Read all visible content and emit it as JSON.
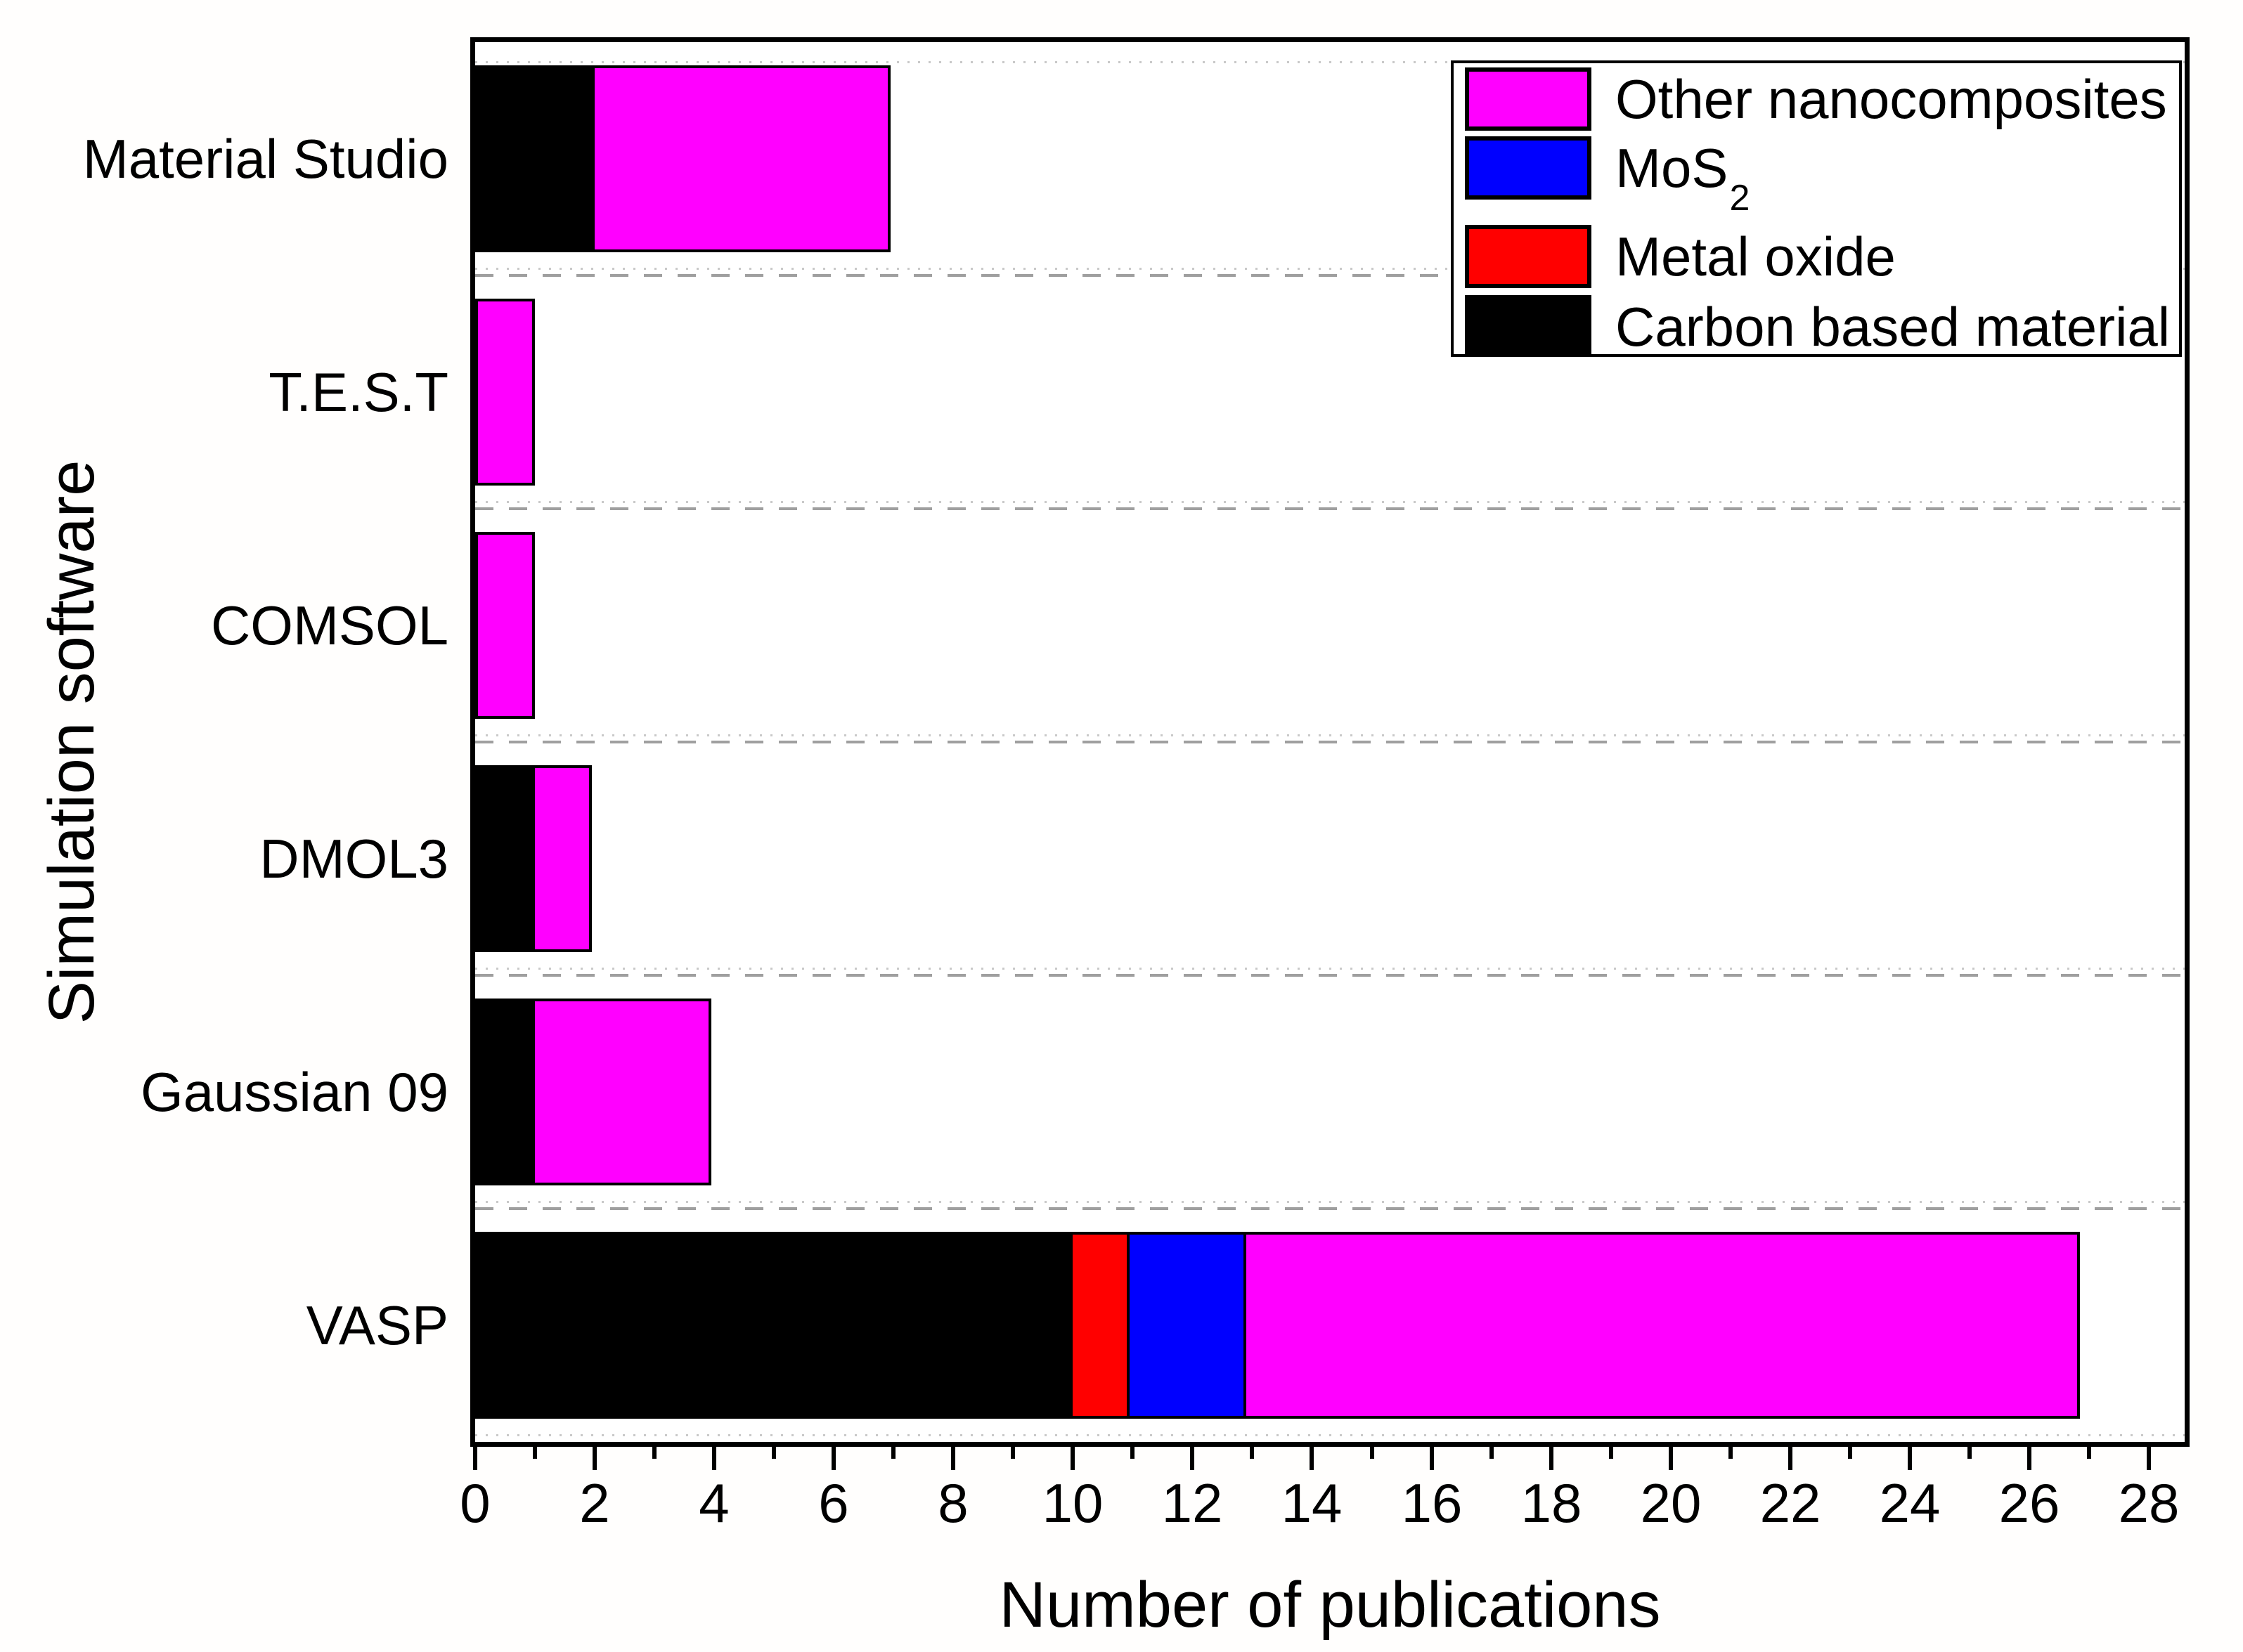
{
  "chart_data": {
    "type": "bar",
    "orientation": "horizontal",
    "stacked": true,
    "title": "",
    "xlabel": "Number of publications",
    "ylabel": "Simulation software",
    "xlim": [
      0,
      28.6
    ],
    "x_major_ticks": [
      0,
      2,
      4,
      6,
      8,
      10,
      12,
      14,
      16,
      18,
      20,
      22,
      24,
      26,
      28
    ],
    "x_minor_ticks": [
      1,
      3,
      5,
      7,
      9,
      11,
      13,
      15,
      17,
      19,
      21,
      23,
      25,
      27
    ],
    "grid": "dashed horizontal lines between category bands",
    "legend_position": "top-right",
    "categories": [
      "Material Studio",
      "T.E.S.T",
      "COMSOL",
      "DMOL3",
      "Gaussian 09",
      "VASP"
    ],
    "series": [
      {
        "name": "Carbon based material",
        "color": "#000000",
        "values": [
          2,
          0,
          0,
          1,
          1,
          10
        ]
      },
      {
        "name": "Metal oxide",
        "color": "#ff0000",
        "values": [
          0,
          0,
          0,
          0,
          0,
          1
        ]
      },
      {
        "name": "MoS2",
        "color": "#0000ff",
        "values": [
          0,
          0,
          0,
          0,
          0,
          2
        ]
      },
      {
        "name": "Other nanocomposites",
        "color": "#ff00ff",
        "values": [
          5,
          1,
          1,
          1,
          3,
          14
        ]
      }
    ]
  },
  "legend": {
    "items": [
      {
        "base": "Other nanocomposites",
        "sub": "",
        "color": "#ff00ff"
      },
      {
        "base": "MoS",
        "sub": "2",
        "color": "#0000ff"
      },
      {
        "base": "Metal oxide",
        "sub": "",
        "color": "#ff0000"
      },
      {
        "base": "Carbon based material",
        "sub": "",
        "color": "#000000"
      }
    ]
  },
  "colors": {
    "bar_outline": "#000000",
    "frame": "#000000",
    "dashed_gridline": "#9f9f9f",
    "dotted_gridline": "#c9c9c9",
    "background": "#ffffff"
  }
}
